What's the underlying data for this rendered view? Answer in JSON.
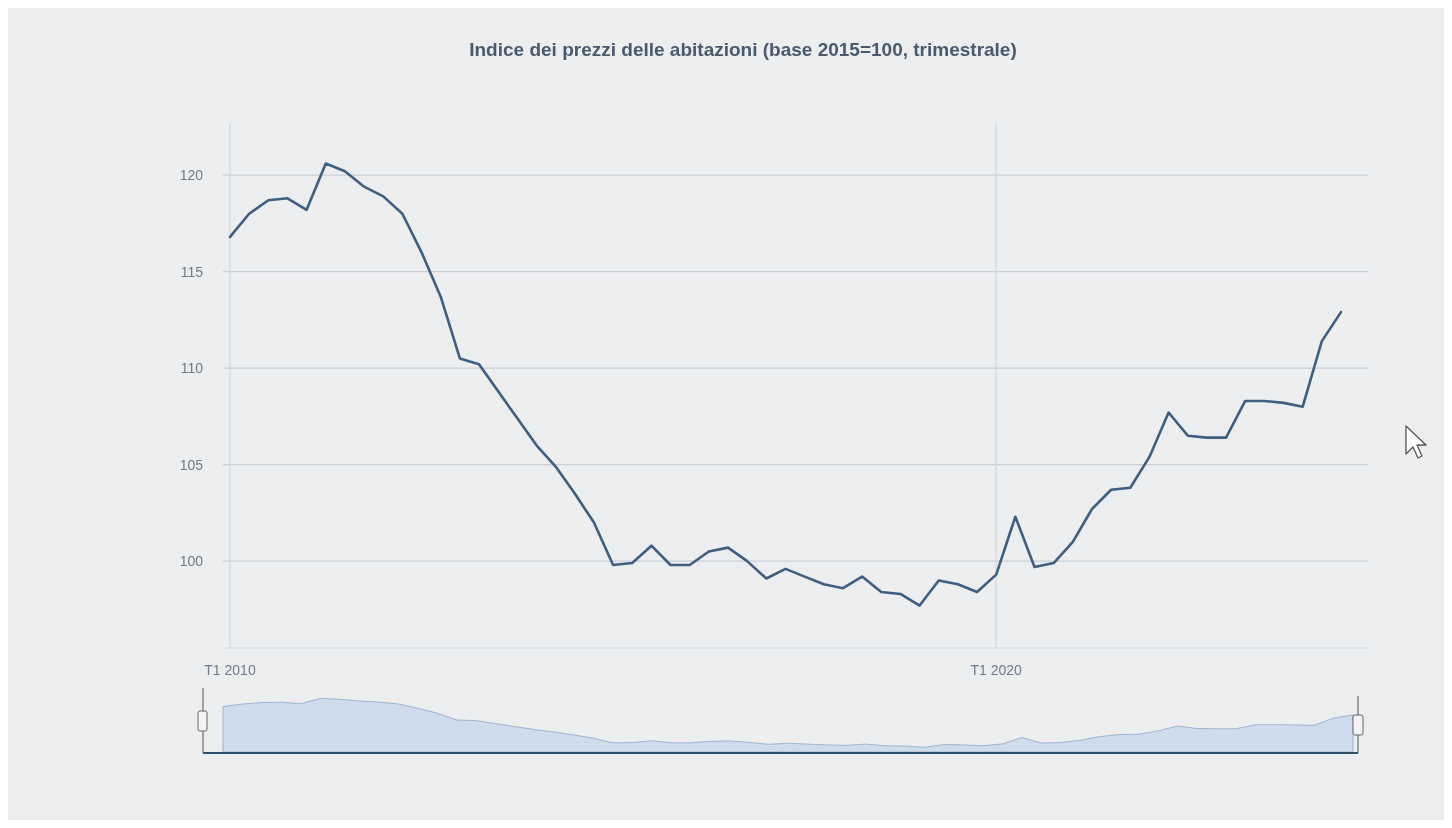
{
  "chart_data": {
    "type": "line",
    "title": "Indice dei prezzi delle abitazioni (base 2015=100, trimestrale)",
    "categories": [
      "T1 2010",
      null,
      null,
      null,
      null,
      null,
      null,
      null,
      null,
      null,
      null,
      null,
      null,
      null,
      null,
      null,
      null,
      null,
      null,
      null,
      null,
      null,
      null,
      null,
      null,
      null,
      null,
      null,
      null,
      null,
      null,
      null,
      null,
      null,
      null,
      null,
      null,
      null,
      null,
      null,
      "T1 2020",
      null,
      null,
      null,
      null,
      null,
      null,
      null,
      null,
      null,
      null,
      null,
      null,
      null,
      null,
      null,
      null,
      null,
      null
    ],
    "series": [
      {
        "color": "#3f5f80",
        "values": [
          116.8,
          118.0,
          118.7,
          118.8,
          118.2,
          120.6,
          120.2,
          119.4,
          118.9,
          118.0,
          116.0,
          113.7,
          110.5,
          110.2,
          108.8,
          107.4,
          106.0,
          104.9,
          103.5,
          102.0,
          99.8,
          99.9,
          100.8,
          99.8,
          99.8,
          100.5,
          100.7,
          100.0,
          99.1,
          99.6,
          99.2,
          98.8,
          98.6,
          99.2,
          98.4,
          98.3,
          97.7,
          99.0,
          98.8,
          98.4,
          99.3,
          102.3,
          99.7,
          99.9,
          101.0,
          102.7,
          103.7,
          103.8,
          105.4,
          107.7,
          106.5,
          106.4,
          106.4,
          108.3,
          108.3,
          108.2,
          108.0,
          111.4,
          112.9
        ]
      }
    ],
    "ylim": [
      95.5,
      122.7
    ],
    "yticks": [
      100,
      105,
      110,
      115,
      120
    ],
    "grid": true,
    "marker": "none",
    "line_style": "solid"
  }
}
